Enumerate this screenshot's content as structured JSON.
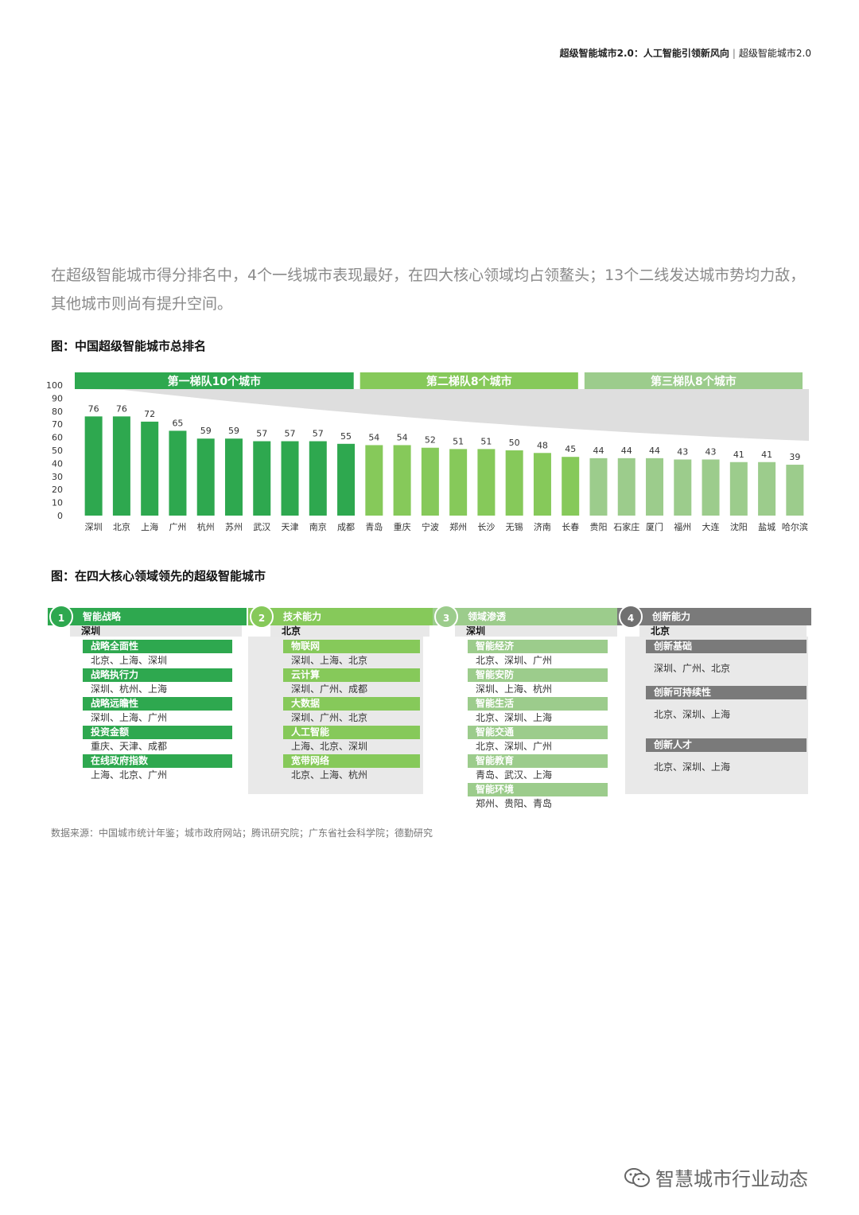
{
  "header": {
    "bold_text": "超级智能城市2.0：人工智能引领新风向",
    "separator": "|",
    "plain_text": "超级智能城市2.0"
  },
  "intro_text": "在超级智能城市得分排名中，4个一线城市表现最好，在四大核心领域均占领鳌头；13个二线发达城市势均力敌，其他城市则尚有提升空间。",
  "figure1": {
    "title": "图：中国超级智能城市总排名"
  },
  "chart_data": {
    "type": "bar",
    "title": "图：中国超级智能城市总排名",
    "categories": [
      "深圳",
      "北京",
      "上海",
      "广州",
      "杭州",
      "苏州",
      "武汉",
      "天津",
      "南京",
      "成都",
      "青岛",
      "重庆",
      "宁波",
      "郑州",
      "长沙",
      "无锡",
      "济南",
      "长春",
      "贵阳",
      "石家庄",
      "厦门",
      "福州",
      "大连",
      "沈阳",
      "盐城",
      "哈尔滨"
    ],
    "values": [
      76,
      76,
      72,
      65,
      59,
      59,
      57,
      57,
      57,
      55,
      54,
      54,
      52,
      51,
      51,
      50,
      48,
      45,
      44,
      44,
      44,
      43,
      43,
      41,
      41,
      39
    ],
    "ylim": [
      0,
      100
    ],
    "yticks": [
      0,
      10,
      20,
      30,
      40,
      50,
      60,
      70,
      80,
      90,
      100
    ],
    "tiers": [
      {
        "label": "第一梯队10个城市",
        "count": 10,
        "color": "#2ea84f"
      },
      {
        "label": "第二梯队8个城市",
        "count": 8,
        "color": "#86c95a"
      },
      {
        "label": "第三梯队8个城市",
        "count": 8,
        "color": "#9ccc8c"
      }
    ],
    "grid": false
  },
  "figure2": {
    "title": "图：在四大核心领域领先的超级智能城市",
    "columns": [
      {
        "number": "1",
        "name": "智能战略",
        "leader": "深圳",
        "color": "#2ea84f",
        "circle_color": "#2ea84f",
        "items": [
          {
            "label": "战略全面性",
            "cities": "北京、上海、深圳"
          },
          {
            "label": "战略执行力",
            "cities": "深圳、杭州、上海"
          },
          {
            "label": "战略远瞻性",
            "cities": "深圳、上海、广州"
          },
          {
            "label": "投资金额",
            "cities": "重庆、天津、成都"
          },
          {
            "label": "在线政府指数",
            "cities": "上海、北京、广州"
          }
        ]
      },
      {
        "number": "2",
        "name": "技术能力",
        "leader": "北京",
        "color": "#86c95a",
        "circle_color": "#86c95a",
        "items": [
          {
            "label": "物联网",
            "cities": "深圳、上海、北京"
          },
          {
            "label": "云计算",
            "cities": "深圳、广州、成都"
          },
          {
            "label": "大数据",
            "cities": "深圳、广州、北京"
          },
          {
            "label": "人工智能",
            "cities": "上海、北京、深圳"
          },
          {
            "label": "宽带网络",
            "cities": "北京、上海、杭州"
          }
        ]
      },
      {
        "number": "3",
        "name": "领域渗透",
        "leader": "深圳",
        "color": "#9ccc8c",
        "circle_color": "#9ccc8c",
        "items": [
          {
            "label": "智能经济",
            "cities": "北京、深圳、广州"
          },
          {
            "label": "智能安防",
            "cities": "深圳、上海、杭州"
          },
          {
            "label": "智能生活",
            "cities": "北京、深圳、上海"
          },
          {
            "label": "智能交通",
            "cities": "北京、深圳、广州"
          },
          {
            "label": "智能教育",
            "cities": "青岛、武汉、上海"
          },
          {
            "label": "智能环境",
            "cities": "郑州、贵阳、青岛"
          }
        ]
      },
      {
        "number": "4",
        "name": "创新能力",
        "leader": "北京",
        "color": "#7a7a7a",
        "circle_color": "#707070",
        "items": [
          {
            "label": "创新基础",
            "cities": "深圳、广州、北京"
          },
          {
            "label": "创新可持续性",
            "cities": "北京、深圳、上海"
          },
          {
            "label": "创新人才",
            "cities": "北京、深圳、上海"
          }
        ]
      }
    ]
  },
  "source_text": "数据来源：中国城市统计年鉴；城市政府网站；腾讯研究院；广东省社会科学院；德勤研究",
  "watermark": {
    "text": "智慧城市行业动态",
    "icon": "wechat-icon"
  }
}
